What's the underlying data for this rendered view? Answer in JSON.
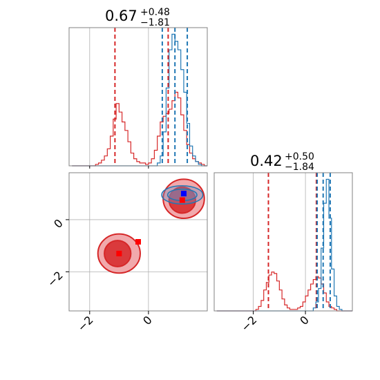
{
  "colors": {
    "red": "#d62728",
    "red_fill_light": "#f0a0a3",
    "red_fill_dark": "#d62728",
    "blue": "#1f77b4",
    "blue_fill": "#6b8fc7",
    "marker_blue": "#0000ff",
    "marker_red": "#ff0000",
    "grid": "#b0b0b0",
    "frame": "#808080"
  },
  "chart_data": [
    {
      "panel": "marginal-x",
      "type": "histogram",
      "title": {
        "base": "0.67",
        "sup": "+0.48",
        "sub": "−1.81"
      },
      "xlim": [
        -2.7,
        2.0
      ],
      "grid": true,
      "bins": [
        -2.6,
        -2.5,
        -2.4,
        -2.3,
        -2.2,
        -2.1,
        -2.0,
        -1.9,
        -1.8,
        -1.7,
        -1.6,
        -1.5,
        -1.4,
        -1.3,
        -1.2,
        -1.1,
        -1.0,
        -0.9,
        -0.8,
        -0.7,
        -0.6,
        -0.5,
        -0.4,
        -0.3,
        -0.2,
        -0.1,
        0.0,
        0.1,
        0.2,
        0.3,
        0.4,
        0.5,
        0.6,
        0.7,
        0.8,
        0.9,
        1.0,
        1.1,
        1.2,
        1.3,
        1.4,
        1.5,
        1.6,
        1.7,
        1.8,
        1.9
      ],
      "series": [
        {
          "color": "red",
          "counts": [
            0,
            0,
            0,
            0,
            0,
            0,
            0,
            0,
            0.01,
            0.02,
            0.04,
            0.07,
            0.12,
            0.21,
            0.33,
            0.44,
            0.38,
            0.31,
            0.25,
            0.17,
            0.09,
            0.05,
            0.03,
            0.02,
            0.02,
            0.01,
            0.02,
            0.05,
            0.11,
            0.21,
            0.31,
            0.35,
            0.37,
            0.4,
            0.46,
            0.52,
            0.48,
            0.36,
            0.25,
            0.15,
            0.09,
            0.05,
            0.03,
            0.02,
            0.01,
            0
          ]
        },
        {
          "color": "blue",
          "counts": [
            0,
            0,
            0,
            0,
            0,
            0,
            0,
            0,
            0,
            0,
            0,
            0,
            0,
            0,
            0,
            0,
            0,
            0,
            0,
            0,
            0,
            0,
            0,
            0,
            0,
            0,
            0,
            0,
            0,
            0.02,
            0.07,
            0.24,
            0.55,
            0.82,
            0.93,
            0.88,
            0.82,
            0.68,
            0.52,
            0.3,
            0.14,
            0.07,
            0.03,
            0.01,
            0,
            0
          ]
        }
      ],
      "lines": [
        {
          "color": "red",
          "x": -1.14
        },
        {
          "color": "red",
          "x": 0.67
        },
        {
          "color": "blue",
          "x": 0.47
        },
        {
          "color": "blue",
          "x": 0.9
        },
        {
          "color": "blue",
          "x": 1.32
        }
      ]
    },
    {
      "panel": "joint",
      "type": "contour",
      "xlim": [
        -2.7,
        2.0
      ],
      "ylim": [
        -3.5,
        1.8
      ],
      "grid": true,
      "contours": [
        {
          "color": "red",
          "level": "outer",
          "cx": -1.0,
          "cy": -1.3,
          "rx": 0.72,
          "ry": 0.75
        },
        {
          "color": "red",
          "level": "inner",
          "cx": -1.05,
          "cy": -1.3,
          "rx": 0.45,
          "ry": 0.5
        },
        {
          "color": "red",
          "level": "outer",
          "cx": 1.2,
          "cy": 0.8,
          "rx": 0.7,
          "ry": 0.75
        },
        {
          "color": "red",
          "level": "inner",
          "cx": 1.15,
          "cy": 0.75,
          "rx": 0.45,
          "ry": 0.5
        },
        {
          "color": "blue",
          "level": "outer",
          "cx": 1.15,
          "cy": 0.95,
          "rx": 0.7,
          "ry": 0.35
        },
        {
          "color": "blue",
          "level": "inner",
          "cx": 1.15,
          "cy": 0.95,
          "rx": 0.5,
          "ry": 0.22
        }
      ],
      "markers": [
        {
          "color": "marker_red",
          "x": -1.0,
          "y": -1.3
        },
        {
          "color": "marker_red",
          "x": -0.35,
          "y": -0.85
        },
        {
          "color": "marker_red",
          "x": 1.15,
          "y": 0.75
        },
        {
          "color": "marker_blue",
          "x": 1.2,
          "y": 1.0
        }
      ],
      "xticks": [
        -2,
        0
      ],
      "yticks": [
        0,
        -2
      ]
    },
    {
      "panel": "marginal-y",
      "type": "histogram",
      "title": {
        "base": "0.42",
        "sup": "+0.50",
        "sub": "−1.84"
      },
      "xlim": [
        -3.5,
        1.8
      ],
      "grid": true,
      "bins": [
        -3.4,
        -3.3,
        -3.2,
        -3.1,
        -3.0,
        -2.9,
        -2.8,
        -2.7,
        -2.6,
        -2.5,
        -2.4,
        -2.3,
        -2.2,
        -2.1,
        -2.0,
        -1.9,
        -1.8,
        -1.7,
        -1.6,
        -1.5,
        -1.4,
        -1.3,
        -1.2,
        -1.1,
        -1.0,
        -0.9,
        -0.8,
        -0.7,
        -0.6,
        -0.5,
        -0.4,
        -0.3,
        -0.2,
        -0.1,
        0.0,
        0.1,
        0.2,
        0.3,
        0.4,
        0.5,
        0.6,
        0.7,
        0.8,
        0.9,
        1.0,
        1.1,
        1.2,
        1.3,
        1.4,
        1.5,
        1.6,
        1.7
      ],
      "series": [
        {
          "color": "red",
          "counts": [
            0,
            0,
            0,
            0,
            0,
            0,
            0,
            0,
            0,
            0,
            0,
            0,
            0,
            0,
            0,
            0.01,
            0.03,
            0.07,
            0.14,
            0.19,
            0.24,
            0.26,
            0.25,
            0.2,
            0.14,
            0.08,
            0.04,
            0.02,
            0.01,
            0.01,
            0.01,
            0.02,
            0.03,
            0.06,
            0.1,
            0.14,
            0.18,
            0.21,
            0.23,
            0.22,
            0.18,
            0.12,
            0.06,
            0.03,
            0.02,
            0.01,
            0,
            0,
            0,
            0,
            0,
            0
          ]
        },
        {
          "color": "blue",
          "counts": [
            0,
            0,
            0,
            0,
            0,
            0,
            0,
            0,
            0,
            0,
            0,
            0,
            0,
            0,
            0,
            0,
            0,
            0,
            0,
            0,
            0,
            0,
            0,
            0,
            0,
            0,
            0,
            0,
            0,
            0,
            0,
            0,
            0,
            0,
            0,
            0,
            0,
            0.02,
            0.06,
            0.15,
            0.42,
            0.72,
            0.88,
            0.62,
            0.28,
            0.1,
            0.03,
            0.01,
            0,
            0,
            0,
            0
          ]
        }
      ],
      "lines": [
        {
          "color": "red",
          "x": -1.42
        },
        {
          "color": "red",
          "x": 0.42
        },
        {
          "color": "blue",
          "x": 0.45
        },
        {
          "color": "blue",
          "x": 0.68
        },
        {
          "color": "blue",
          "x": 0.95
        }
      ],
      "xticks": [
        -2,
        0
      ]
    }
  ]
}
